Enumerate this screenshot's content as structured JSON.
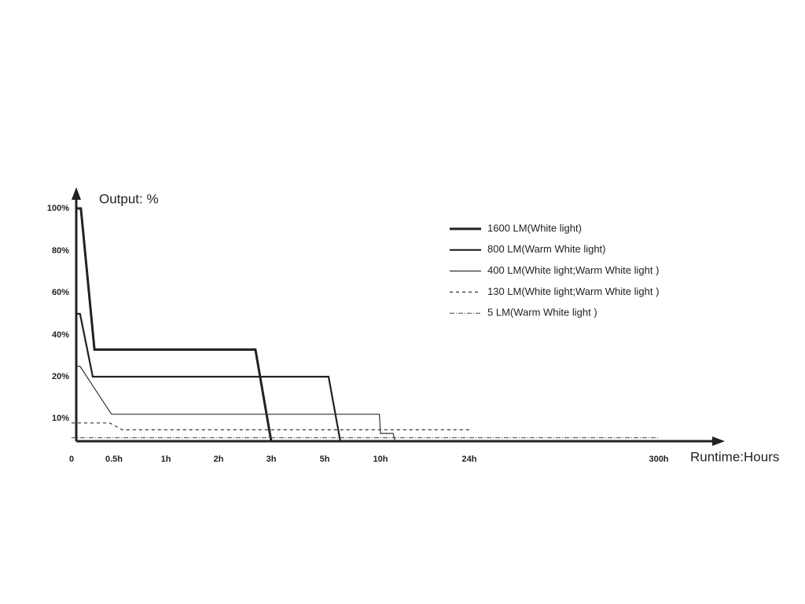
{
  "chart_data": {
    "type": "line",
    "ylabel": "Output: %",
    "xlabel": "Runtime:Hours",
    "xlim": [
      0,
      300
    ],
    "xticks": [
      0,
      {
        "value": 0.5,
        "label": "0.5h"
      },
      {
        "value": 1,
        "label": "1h"
      },
      {
        "value": 2,
        "label": "2h"
      },
      {
        "value": 3,
        "label": "3h"
      },
      {
        "value": 5,
        "label": "5h"
      },
      {
        "value": 10,
        "label": "10h"
      },
      {
        "value": 24,
        "label": "24h"
      },
      {
        "value": 300,
        "label": "300h"
      }
    ],
    "ylim": [
      0,
      100
    ],
    "yticks": [
      {
        "value": 10,
        "label": "10%"
      },
      {
        "value": 20,
        "label": "20%"
      },
      {
        "value": 40,
        "label": "40%"
      },
      {
        "value": 60,
        "label": "60%"
      },
      {
        "value": 80,
        "label": "80%"
      },
      {
        "value": 100,
        "label": "100%"
      }
    ],
    "series": [
      {
        "name": "1600 LM(White light)",
        "color": "#222222",
        "x": [
          0.05,
          0.11,
          0.27,
          2.7,
          3
        ],
        "values": [
          100,
          100,
          33,
          33,
          0
        ]
      },
      {
        "name": "800 LM(Warm White light)",
        "color": "#222222",
        "x": [
          0.05,
          0.1,
          0.25,
          5.35,
          6.4
        ],
        "values": [
          50,
          50,
          20,
          20,
          0
        ]
      },
      {
        "name": "400 LM(White light;Warm White light )",
        "color": "#333333",
        "x": [
          0.05,
          0.1,
          0.47,
          9.9,
          10,
          12,
          12.3
        ],
        "values": [
          25,
          25,
          11,
          11,
          3.4,
          3.4,
          0
        ]
      },
      {
        "name": "130 LM(White light;Warm White light )",
        "color": "#333333",
        "x": [
          0,
          0.45,
          0.58,
          24
        ],
        "values": [
          8,
          8,
          5,
          5
        ]
      },
      {
        "name": "5 LM(Warm White light )",
        "color": "#444444",
        "x": [
          0,
          300
        ],
        "values": [
          1.5,
          1.5
        ]
      }
    ]
  }
}
